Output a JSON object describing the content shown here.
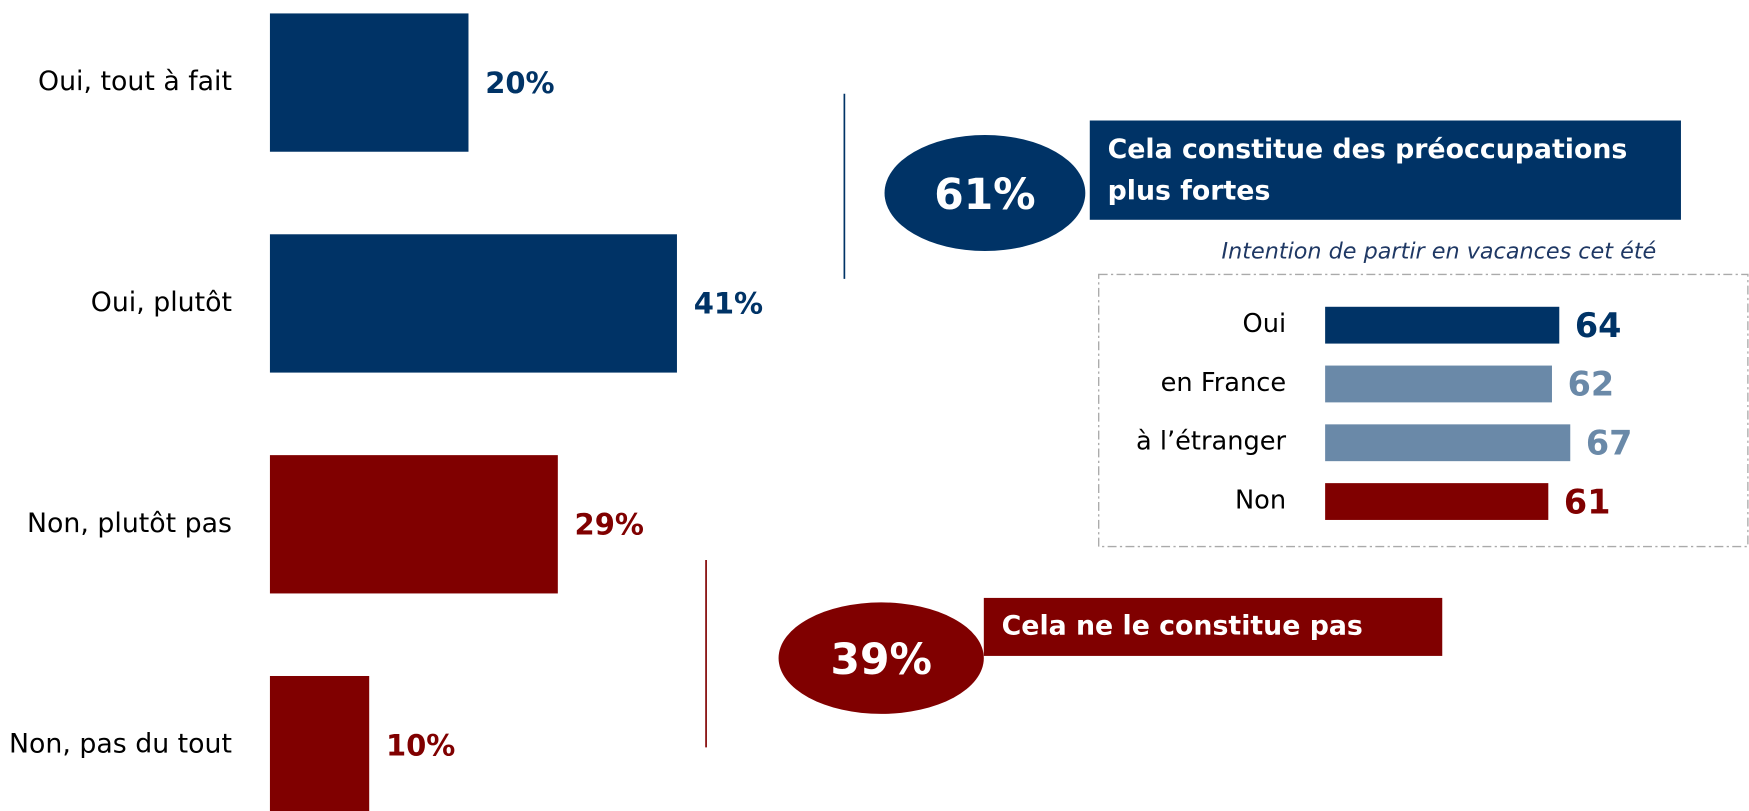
{
  "chart_data": [
    {
      "type": "bar",
      "orientation": "horizontal",
      "categories": [
        "Oui, tout à fait",
        "Oui, plutôt",
        "Non, plutôt pas",
        "Non, pas du tout"
      ],
      "values": [
        20,
        41,
        29,
        10
      ],
      "value_labels": [
        "20%",
        "41%",
        "29%",
        "10%"
      ],
      "colors": [
        "#003366",
        "#003366",
        "#800000",
        "#800000"
      ],
      "xlim": [
        0,
        100
      ]
    },
    {
      "type": "bar",
      "orientation": "horizontal",
      "title": "Intention de partir en vacances cet été",
      "categories": [
        "Oui",
        "en France",
        "à l’étranger",
        "Non"
      ],
      "values": [
        64,
        62,
        67,
        61
      ],
      "colors": [
        "#003366",
        "#6a89a8",
        "#6a89a8",
        "#800000"
      ],
      "xlim": [
        0,
        100
      ]
    }
  ],
  "annotations": [
    {
      "value": 61,
      "label": "61%",
      "text": [
        "Cela constitue des préoccupations",
        "plus fortes"
      ],
      "color": "#003366"
    },
    {
      "value": 39,
      "label": "39%",
      "text": [
        "Cela ne le constitue pas"
      ],
      "color": "#800000"
    }
  ]
}
